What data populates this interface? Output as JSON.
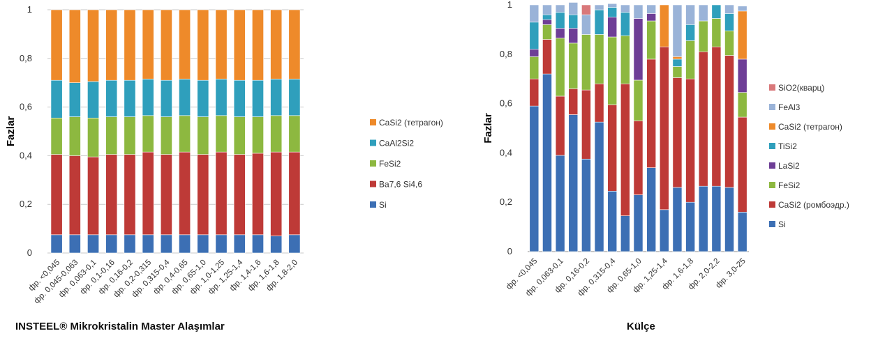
{
  "captions": {
    "left": "INSTEEL® Mikrokristalin Master Alaşımlar",
    "right": "Külçe"
  },
  "chart_data": [
    {
      "type": "bar",
      "stacked": true,
      "ylabel": "Fazlar",
      "ylim": [
        0,
        1
      ],
      "yticks": [
        "0",
        "0,2",
        "0,4",
        "0,6",
        "0,8",
        "1"
      ],
      "grid": true,
      "legend_position": "right",
      "categories": [
        "фр. <0,045",
        "фр. 0,045-0,063",
        "фр. 0,063-0,1",
        "фр. 0,1-0,16",
        "фр. 0,16-0,2",
        "фр. 0,2-0,315",
        "фр. 0,315-0,4",
        "фр. 0,4-0,65",
        "фр. 0,65-1,0",
        "фр. 1,0-1,25",
        "фр. 1,25-1,4",
        "фр. 1,4-1,6",
        "фр. 1,6-1,8",
        "фр. 1,8-2,0"
      ],
      "series": [
        {
          "name": "Si",
          "color": "#3c6fb4",
          "values": [
            0.075,
            0.075,
            0.075,
            0.075,
            0.075,
            0.075,
            0.075,
            0.075,
            0.075,
            0.075,
            0.075,
            0.075,
            0.07,
            0.075
          ]
        },
        {
          "name": "Ba7,6 Si4,6",
          "color": "#be3a37",
          "values": [
            0.33,
            0.325,
            0.32,
            0.33,
            0.33,
            0.34,
            0.33,
            0.34,
            0.33,
            0.34,
            0.33,
            0.335,
            0.345,
            0.34
          ]
        },
        {
          "name": "FeSi2",
          "color": "#8db840",
          "values": [
            0.15,
            0.16,
            0.16,
            0.155,
            0.155,
            0.15,
            0.155,
            0.15,
            0.155,
            0.15,
            0.155,
            0.15,
            0.15,
            0.15
          ]
        },
        {
          "name": "CaAl2Si2",
          "color": "#2f9fbc",
          "values": [
            0.155,
            0.14,
            0.15,
            0.15,
            0.15,
            0.15,
            0.15,
            0.15,
            0.15,
            0.15,
            0.15,
            0.15,
            0.15,
            0.15
          ]
        },
        {
          "name": "CaSi2 (тетрагон)",
          "color": "#ee8a2a",
          "values": [
            0.29,
            0.3,
            0.295,
            0.29,
            0.29,
            0.285,
            0.29,
            0.285,
            0.29,
            0.285,
            0.29,
            0.29,
            0.285,
            0.285
          ]
        }
      ]
    },
    {
      "type": "bar",
      "stacked": true,
      "ylabel": "Fazlar",
      "ylim": [
        0,
        1
      ],
      "yticks": [
        "0",
        "0,2",
        "0,4",
        "0,6",
        "0,8",
        "1"
      ],
      "grid": false,
      "legend_position": "right",
      "categories": [
        "фр. <0,045",
        "",
        "фр. 0,063-0,1",
        "",
        "фр. 0,16-0,2",
        "",
        "фр. 0,315-0,4",
        "",
        "фр. 0,65-1,0",
        "",
        "фр. 1,25-1,4",
        "",
        "фр. 1,6-1,8",
        "",
        "фр. 2,0-2,2",
        "",
        "фр. 3,0-25"
      ],
      "series": [
        {
          "name": "Si",
          "color": "#3c6fb4",
          "values": [
            0.59,
            0.72,
            0.39,
            0.555,
            0.375,
            0.525,
            0.245,
            0.145,
            0.23,
            0.34,
            0.17,
            0.26,
            0.2,
            0.265,
            0.265,
            0.26,
            0.16
          ]
        },
        {
          "name": "CaSi2 (ромбоэдр.)",
          "color": "#be3a37",
          "values": [
            0.11,
            0.14,
            0.24,
            0.105,
            0.28,
            0.155,
            0.35,
            0.535,
            0.3,
            0.44,
            0.66,
            0.445,
            0.5,
            0.545,
            0.565,
            0.535,
            0.385
          ]
        },
        {
          "name": "FeSi2",
          "color": "#8db840",
          "values": [
            0.09,
            0.06,
            0.235,
            0.185,
            0.225,
            0.2,
            0.275,
            0.195,
            0.165,
            0.155,
            0.0,
            0.045,
            0.155,
            0.125,
            0.115,
            0.1,
            0.1
          ]
        },
        {
          "name": "LaSi2",
          "color": "#6e3e96",
          "values": [
            0.03,
            0.02,
            0.04,
            0.06,
            0.0,
            0.0,
            0.08,
            0.0,
            0.25,
            0.03,
            0.0,
            0.0,
            0.0,
            0.0,
            0.0,
            0.0,
            0.135
          ]
        },
        {
          "name": "TiSi2",
          "color": "#2f9fbc",
          "values": [
            0.11,
            0.02,
            0.065,
            0.055,
            0.0,
            0.1,
            0.04,
            0.095,
            0.0,
            0.0,
            0.0,
            0.03,
            0.065,
            0.0,
            0.055,
            0.07,
            0.0
          ]
        },
        {
          "name": "CaSi2 (тетрагон)",
          "color": "#ee8a2a",
          "values": [
            0.0,
            0.0,
            0.0,
            0.0,
            0.0,
            0.0,
            0.0,
            0.0,
            0.0,
            0.0,
            0.17,
            0.01,
            0.0,
            0.0,
            0.0,
            0.0,
            0.195
          ]
        },
        {
          "name": "FeAl3",
          "color": "#9ab3d8",
          "values": [
            0.07,
            0.04,
            0.03,
            0.05,
            0.08,
            0.02,
            0.015,
            0.03,
            0.055,
            0.035,
            0.0,
            0.21,
            0.08,
            0.065,
            0.0,
            0.035,
            0.02
          ]
        },
        {
          "name": "SiO2(кварц)",
          "color": "#d9787a",
          "values": [
            0.0,
            0.0,
            0.0,
            0.0,
            0.04,
            0.0,
            0.0,
            0.0,
            0.0,
            0.0,
            0.0,
            0.0,
            0.0,
            0.0,
            0.0,
            0.0,
            0.0
          ]
        }
      ]
    }
  ]
}
